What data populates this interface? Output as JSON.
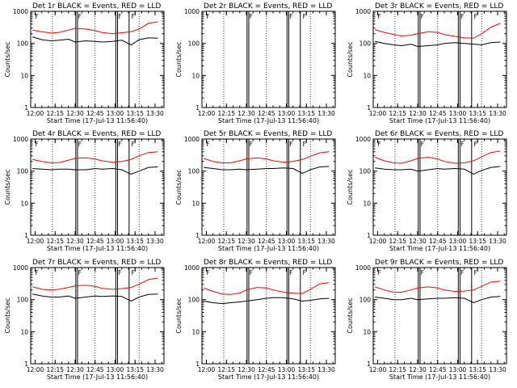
{
  "figure": {
    "x_tick_labels": [
      "12:00",
      "12:15",
      "12:30",
      "12:45",
      "13:00",
      "13:15",
      "13:30"
    ],
    "y_tick_labels": [
      "1",
      "10",
      "100",
      "1000"
    ],
    "ylabel": "Counts/sec",
    "xlabel": "Start Time (17-Jul-13 11:56:40)"
  },
  "chart_data": [
    {
      "type": "line",
      "title": "Det 1r BLACK = Events, RED = LLD",
      "xlabel": "Start Time (17-Jul-13 11:56:40)",
      "ylabel": "Counts/sec",
      "yscale": "log",
      "ylim": [
        1,
        1000
      ],
      "xlim": [
        "11:56:40",
        "13:36:40"
      ],
      "markers": [
        "F",
        "F",
        "F",
        "F"
      ],
      "series": [
        {
          "color": "#000000",
          "values": {
            "x": [
              "11:58",
              "12:05",
              "12:12",
              "12:18",
              "12:25",
              "12:30",
              "12:38",
              "12:45",
              "12:50",
              "12:58",
              "13:05",
              "13:12",
              "13:18",
              "13:25",
              "13:32"
            ],
            "y": [
              160,
              130,
              120,
              125,
              135,
              110,
              120,
              115,
              110,
              115,
              125,
              90,
              130,
              150,
              145
            ]
          }
        },
        {
          "color": "#ff0000",
          "values": {
            "x": [
              "11:58",
              "12:05",
              "12:12",
              "12:18",
              "12:25",
              "12:30",
              "12:38",
              "12:45",
              "12:50",
              "12:58",
              "13:05",
              "13:12",
              "13:18",
              "13:25",
              "13:32"
            ],
            "y": [
              260,
              230,
              210,
              220,
              260,
              290,
              280,
              250,
              220,
              200,
              215,
              230,
              280,
              420,
              470
            ]
          }
        }
      ]
    },
    {
      "type": "line",
      "title": "Det 2r BLACK = Events, RED = LLD",
      "xlabel": "Start Time (17-Jul-13 11:56:40)",
      "ylabel": "Counts/sec",
      "yscale": "log",
      "ylim": [
        1,
        1000
      ],
      "xlim": [
        "11:56:40",
        "13:36:40"
      ],
      "markers": [
        "F",
        "F",
        "F",
        "F"
      ],
      "series": []
    },
    {
      "type": "line",
      "title": "Det 3r BLACK = Events, RED = LLD",
      "xlabel": "Start Time (17-Jul-13 11:56:40)",
      "ylabel": "Counts/sec",
      "yscale": "log",
      "ylim": [
        1,
        1000
      ],
      "xlim": [
        "11:56:40",
        "13:36:40"
      ],
      "markers": [
        "F",
        "F",
        "F",
        "F"
      ],
      "series": [
        {
          "color": "#000000",
          "values": {
            "x": [
              "11:58",
              "12:05",
              "12:12",
              "12:18",
              "12:25",
              "12:30",
              "12:38",
              "12:45",
              "12:50",
              "12:58",
              "13:05",
              "13:12",
              "13:18",
              "13:25",
              "13:32"
            ],
            "y": [
              115,
              100,
              90,
              85,
              95,
              80,
              85,
              90,
              100,
              105,
              100,
              95,
              90,
              105,
              110
            ]
          }
        },
        {
          "color": "#ff0000",
          "values": {
            "x": [
              "11:58",
              "12:05",
              "12:12",
              "12:18",
              "12:25",
              "12:30",
              "12:38",
              "12:45",
              "12:50",
              "12:58",
              "13:05",
              "13:12",
              "13:18",
              "13:25",
              "13:32"
            ],
            "y": [
              270,
              220,
              190,
              170,
              180,
              200,
              230,
              220,
              190,
              165,
              150,
              145,
              200,
              320,
              420
            ]
          }
        }
      ]
    },
    {
      "type": "line",
      "title": "Det 4r BLACK = Events, RED = LLD",
      "xlabel": "Start Time (17-Jul-13 11:56:40)",
      "ylabel": "Counts/sec",
      "yscale": "log",
      "ylim": [
        1,
        1000
      ],
      "xlim": [
        "11:56:40",
        "13:36:40"
      ],
      "markers": [
        "F",
        "F",
        "F",
        "F"
      ],
      "series": [
        {
          "color": "#000000",
          "values": {
            "x": [
              "11:58",
              "12:05",
              "12:12",
              "12:18",
              "12:25",
              "12:30",
              "12:38",
              "12:45",
              "12:50",
              "12:58",
              "13:05",
              "13:12",
              "13:18",
              "13:25",
              "13:32"
            ],
            "y": [
              120,
              115,
              110,
              115,
              115,
              110,
              110,
              120,
              115,
              120,
              110,
              80,
              100,
              130,
              135
            ]
          }
        },
        {
          "color": "#ff0000",
          "values": {
            "x": [
              "11:58",
              "12:05",
              "12:12",
              "12:18",
              "12:25",
              "12:30",
              "12:38",
              "12:45",
              "12:50",
              "12:58",
              "13:05",
              "13:12",
              "13:18",
              "13:25",
              "13:32"
            ],
            "y": [
              230,
              200,
              180,
              185,
              220,
              250,
              260,
              240,
              210,
              190,
              200,
              230,
              300,
              380,
              400
            ]
          }
        }
      ]
    },
    {
      "type": "line",
      "title": "Det 5r BLACK = Events, RED = LLD",
      "xlabel": "Start Time (17-Jul-13 11:56:40)",
      "ylabel": "Counts/sec",
      "yscale": "log",
      "ylim": [
        1,
        1000
      ],
      "xlim": [
        "11:56:40",
        "13:36:40"
      ],
      "markers": [
        "F",
        "F",
        "F",
        "F"
      ],
      "series": [
        {
          "color": "#000000",
          "values": {
            "x": [
              "11:58",
              "12:05",
              "12:12",
              "12:18",
              "12:25",
              "12:30",
              "12:38",
              "12:45",
              "12:50",
              "12:58",
              "13:05",
              "13:12",
              "13:18",
              "13:25",
              "13:32"
            ],
            "y": [
              130,
              120,
              110,
              110,
              115,
              110,
              115,
              120,
              120,
              125,
              120,
              85,
              110,
              135,
              140
            ]
          }
        },
        {
          "color": "#ff0000",
          "values": {
            "x": [
              "11:58",
              "12:05",
              "12:12",
              "12:18",
              "12:25",
              "12:30",
              "12:38",
              "12:45",
              "12:50",
              "12:58",
              "13:05",
              "13:12",
              "13:18",
              "13:25",
              "13:32"
            ],
            "y": [
              250,
              200,
              180,
              180,
              210,
              240,
              260,
              240,
              210,
              190,
              200,
              230,
              290,
              370,
              400
            ]
          }
        }
      ]
    },
    {
      "type": "line",
      "title": "Det 6r BLACK = Events, RED = LLD",
      "xlabel": "Start Time (17-Jul-13 11:56:40)",
      "ylabel": "Counts/sec",
      "yscale": "log",
      "ylim": [
        1,
        1000
      ],
      "xlim": [
        "11:56:40",
        "13:36:40"
      ],
      "markers": [
        "F",
        "F",
        "F",
        "F"
      ],
      "series": [
        {
          "color": "#000000",
          "values": {
            "x": [
              "11:58",
              "12:05",
              "12:12",
              "12:18",
              "12:25",
              "12:30",
              "12:38",
              "12:45",
              "12:50",
              "12:58",
              "13:05",
              "13:12",
              "13:18",
              "13:25",
              "13:32"
            ],
            "y": [
              125,
              115,
              110,
              110,
              115,
              100,
              110,
              120,
              115,
              120,
              115,
              80,
              105,
              130,
              140
            ]
          }
        },
        {
          "color": "#ff0000",
          "values": {
            "x": [
              "11:58",
              "12:05",
              "12:12",
              "12:18",
              "12:25",
              "12:30",
              "12:38",
              "12:45",
              "12:50",
              "12:58",
              "13:05",
              "13:12",
              "13:18",
              "13:25",
              "13:32"
            ],
            "y": [
              270,
              210,
              180,
              175,
              210,
              250,
              270,
              240,
              200,
              175,
              180,
              210,
              280,
              380,
              420
            ]
          }
        }
      ]
    },
    {
      "type": "line",
      "title": "Det 7r BLACK = Events, RED = LLD",
      "xlabel": "Start Time (17-Jul-13 11:56:40)",
      "ylabel": "Counts/sec",
      "yscale": "log",
      "ylim": [
        1,
        1000
      ],
      "xlim": [
        "11:56:40",
        "13:36:40"
      ],
      "markers": [
        "F",
        "F",
        "F",
        "F"
      ],
      "series": [
        {
          "color": "#000000",
          "values": {
            "x": [
              "11:58",
              "12:05",
              "12:12",
              "12:18",
              "12:25",
              "12:30",
              "12:38",
              "12:45",
              "12:50",
              "12:58",
              "13:05",
              "13:12",
              "13:18",
              "13:25",
              "13:32"
            ],
            "y": [
              150,
              130,
              120,
              120,
              130,
              110,
              120,
              130,
              125,
              130,
              125,
              90,
              120,
              145,
              150
            ]
          }
        },
        {
          "color": "#ff0000",
          "values": {
            "x": [
              "11:58",
              "12:05",
              "12:12",
              "12:18",
              "12:25",
              "12:30",
              "12:38",
              "12:45",
              "12:50",
              "12:58",
              "13:05",
              "13:12",
              "13:18",
              "13:25",
              "13:32"
            ],
            "y": [
              250,
              210,
              200,
              210,
              240,
              270,
              280,
              260,
              225,
              210,
              220,
              240,
              300,
              420,
              470
            ]
          }
        }
      ]
    },
    {
      "type": "line",
      "title": "Det 8r BLACK = Events, RED = LLD",
      "xlabel": "Start Time (17-Jul-13 11:56:40)",
      "ylabel": "Counts/sec",
      "yscale": "log",
      "ylim": [
        1,
        1000
      ],
      "xlim": [
        "11:56:40",
        "13:36:40"
      ],
      "markers": [
        "F",
        "F",
        "F",
        "F"
      ],
      "series": [
        {
          "color": "#000000",
          "values": {
            "x": [
              "11:58",
              "12:05",
              "12:12",
              "12:18",
              "12:25",
              "12:30",
              "12:38",
              "12:45",
              "12:50",
              "12:58",
              "13:05",
              "13:12",
              "13:18",
              "13:25",
              "13:32"
            ],
            "y": [
              90,
              80,
              75,
              80,
              85,
              90,
              100,
              110,
              115,
              115,
              105,
              90,
              95,
              105,
              110
            ]
          }
        },
        {
          "color": "#ff0000",
          "values": {
            "x": [
              "11:58",
              "12:05",
              "12:12",
              "12:18",
              "12:25",
              "12:30",
              "12:38",
              "12:45",
              "12:50",
              "12:58",
              "13:05",
              "13:12",
              "13:18",
              "13:25",
              "13:32"
            ],
            "y": [
              230,
              180,
              150,
              145,
              160,
              200,
              240,
              230,
              200,
              170,
              160,
              155,
              210,
              310,
              340
            ]
          }
        }
      ]
    },
    {
      "type": "line",
      "title": "Det 9r BLACK = Events, RED = LLD",
      "xlabel": "Start Time (17-Jul-13 11:56:40)",
      "ylabel": "Counts/sec",
      "yscale": "log",
      "ylim": [
        1,
        1000
      ],
      "xlim": [
        "11:56:40",
        "13:36:40"
      ],
      "markers": [
        "F",
        "F",
        "F",
        "F"
      ],
      "series": [
        {
          "color": "#000000",
          "values": {
            "x": [
              "11:58",
              "12:05",
              "12:12",
              "12:18",
              "12:25",
              "12:30",
              "12:38",
              "12:45",
              "12:50",
              "12:58",
              "13:05",
              "13:12",
              "13:18",
              "13:25",
              "13:32"
            ],
            "y": [
              120,
              110,
              100,
              100,
              110,
              100,
              105,
              110,
              110,
              115,
              110,
              80,
              100,
              120,
              125
            ]
          }
        },
        {
          "color": "#ff0000",
          "values": {
            "x": [
              "11:58",
              "12:05",
              "12:12",
              "12:18",
              "12:25",
              "12:30",
              "12:38",
              "12:45",
              "12:50",
              "12:58",
              "13:05",
              "13:12",
              "13:18",
              "13:25",
              "13:32"
            ],
            "y": [
              250,
              200,
              170,
              170,
              200,
              230,
              250,
              230,
              200,
              180,
              185,
              200,
              260,
              350,
              380
            ]
          }
        }
      ]
    }
  ]
}
